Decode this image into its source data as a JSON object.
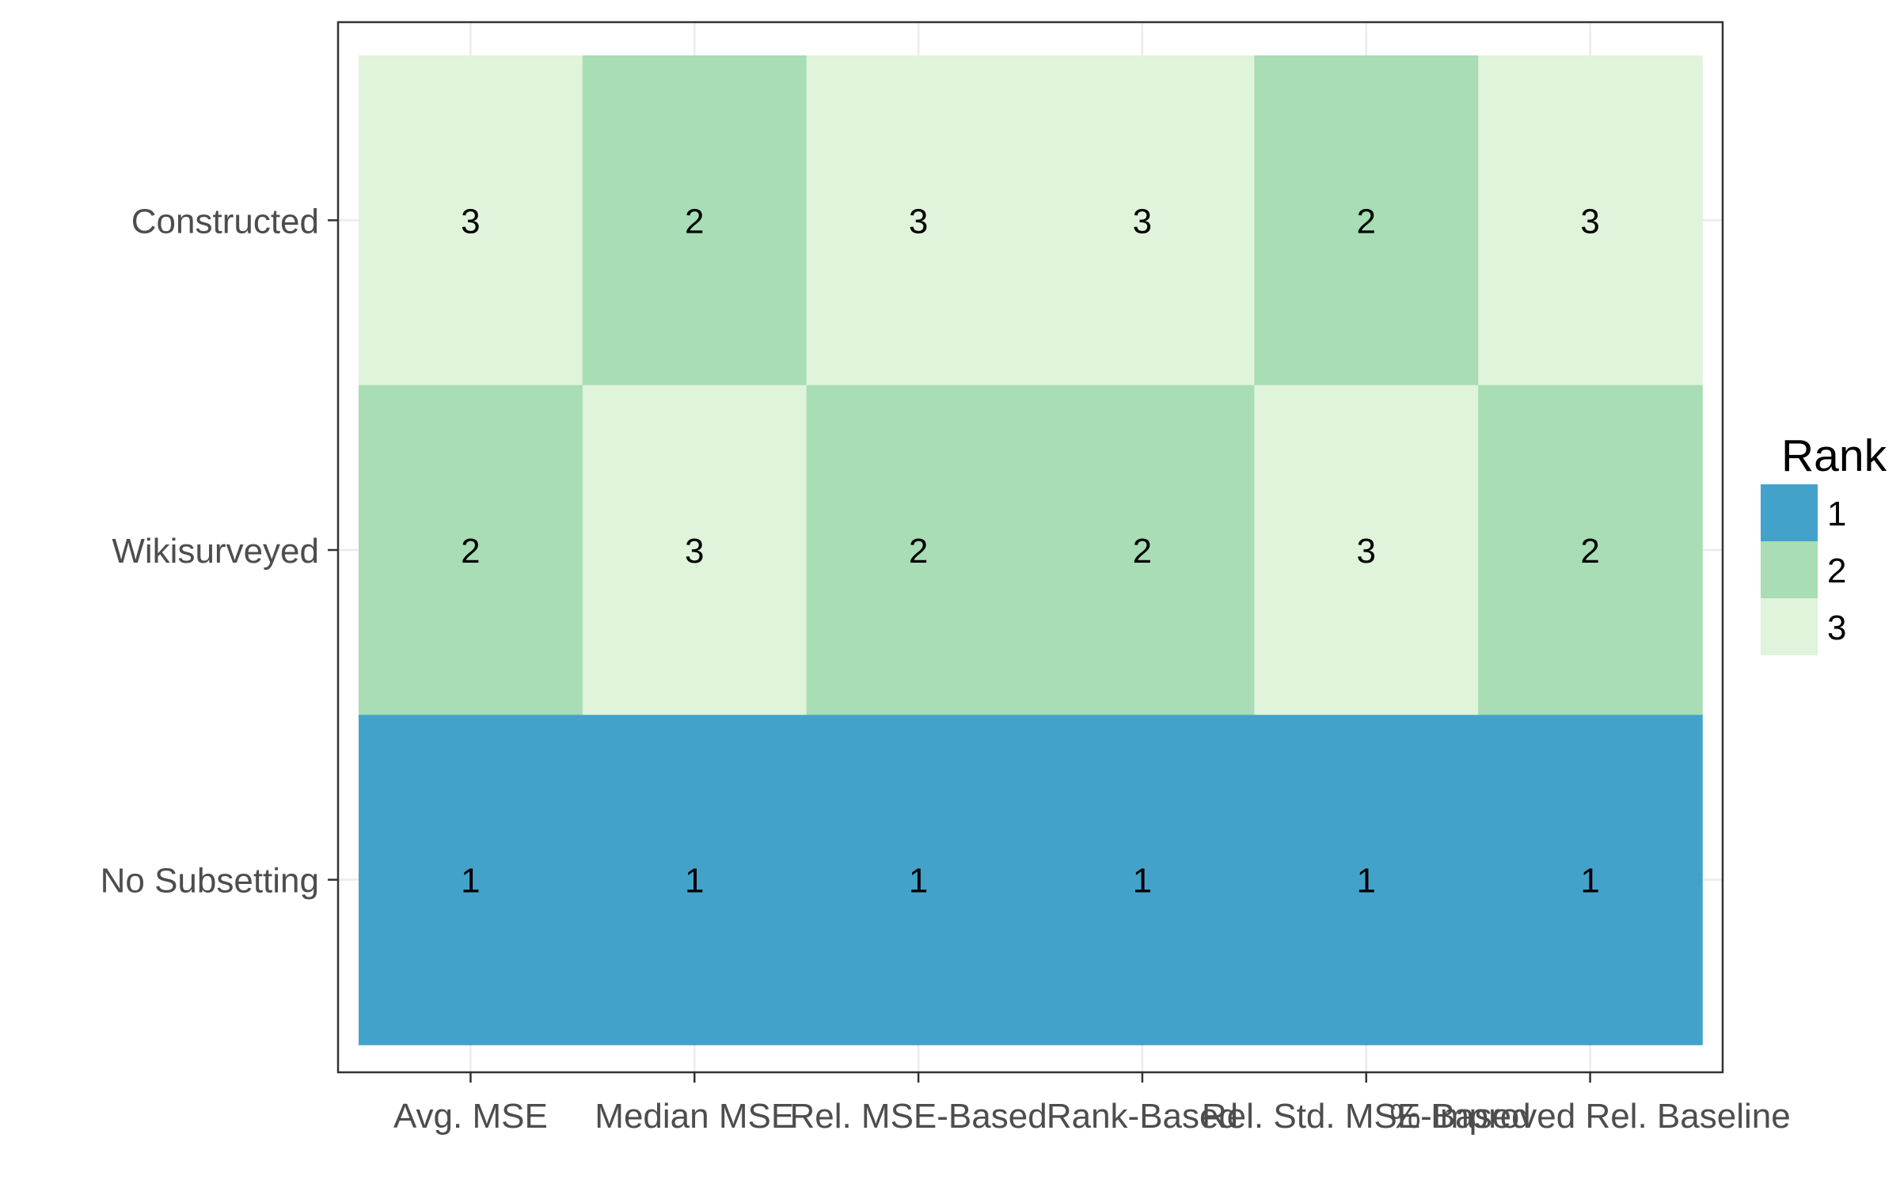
{
  "chart_data": {
    "type": "heatmap",
    "title": "",
    "xlabel": "",
    "ylabel": "",
    "x_categories": [
      "Avg. MSE",
      "Median MSE",
      "Rel. MSE-Based",
      "Rank-Based",
      "Rel. Std. MSE-Based",
      "% Improved Rel. Baseline"
    ],
    "y_categories": [
      "Constructed",
      "Wikisurveyed",
      "No Subsetting"
    ],
    "values": [
      [
        3,
        2,
        3,
        3,
        2,
        3
      ],
      [
        2,
        3,
        2,
        2,
        3,
        2
      ],
      [
        1,
        1,
        1,
        1,
        1,
        1
      ]
    ],
    "grid": true,
    "legend": {
      "title": "Rank",
      "position": "right",
      "entries": [
        {
          "label": "1",
          "value": 1,
          "color": "#43A2CA"
        },
        {
          "label": "2",
          "value": 2,
          "color": "#A8DDB5"
        },
        {
          "label": "3",
          "value": 3,
          "color": "#E0F3DB"
        }
      ]
    },
    "colors": {
      "1": "#43A2CA",
      "2": "#A8DDB5",
      "3": "#E0F3DB"
    }
  }
}
